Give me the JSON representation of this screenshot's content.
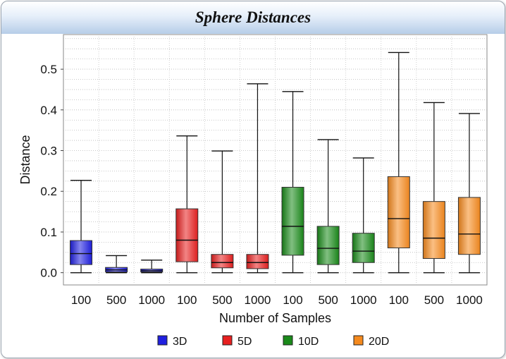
{
  "chart_data": {
    "type": "box",
    "title": "Sphere Distances",
    "xlabel": "Number of Samples",
    "ylabel": "Distance",
    "ylim": [
      -0.03,
      0.585
    ],
    "yticks": [
      "0.0",
      "0.1",
      "0.2",
      "0.3",
      "0.4",
      "0.5"
    ],
    "ytick_values": [
      0,
      0.1,
      0.2,
      0.3,
      0.4,
      0.5
    ],
    "grid": true,
    "legend_position": "bottom",
    "categories": [
      "100",
      "500",
      "1000",
      "100",
      "500",
      "1000",
      "100",
      "500",
      "1000",
      "100",
      "500",
      "1000"
    ],
    "series": [
      {
        "name": "3D",
        "color": "#2020e0",
        "boxes": [
          {
            "samples": "100",
            "min": 0.0,
            "q1": 0.02,
            "median": 0.047,
            "q3": 0.079,
            "max": 0.227
          },
          {
            "samples": "500",
            "min": 0.0,
            "q1": 0.002,
            "median": 0.007,
            "q3": 0.013,
            "max": 0.042
          },
          {
            "samples": "1000",
            "min": 0.0,
            "q1": 0.002,
            "median": 0.005,
            "q3": 0.009,
            "max": 0.031
          }
        ]
      },
      {
        "name": "5D",
        "color": "#e82020",
        "boxes": [
          {
            "samples": "100",
            "min": 0.0,
            "q1": 0.027,
            "median": 0.08,
            "q3": 0.157,
            "max": 0.336
          },
          {
            "samples": "500",
            "min": 0.0,
            "q1": 0.012,
            "median": 0.025,
            "q3": 0.045,
            "max": 0.299
          },
          {
            "samples": "1000",
            "min": 0.0,
            "q1": 0.01,
            "median": 0.025,
            "q3": 0.045,
            "max": 0.464
          }
        ]
      },
      {
        "name": "10D",
        "color": "#1a8a1a",
        "boxes": [
          {
            "samples": "100",
            "min": 0.0,
            "q1": 0.043,
            "median": 0.114,
            "q3": 0.21,
            "max": 0.445
          },
          {
            "samples": "500",
            "min": 0.0,
            "q1": 0.02,
            "median": 0.06,
            "q3": 0.114,
            "max": 0.327
          },
          {
            "samples": "1000",
            "min": 0.0,
            "q1": 0.025,
            "median": 0.053,
            "q3": 0.097,
            "max": 0.282
          }
        ]
      },
      {
        "name": "20D",
        "color": "#f58a1e",
        "boxes": [
          {
            "samples": "100",
            "min": 0.0,
            "q1": 0.061,
            "median": 0.133,
            "q3": 0.236,
            "max": 0.541
          },
          {
            "samples": "500",
            "min": 0.0,
            "q1": 0.035,
            "median": 0.085,
            "q3": 0.175,
            "max": 0.418
          },
          {
            "samples": "1000",
            "min": 0.0,
            "q1": 0.045,
            "median": 0.095,
            "q3": 0.185,
            "max": 0.391
          }
        ]
      }
    ]
  }
}
